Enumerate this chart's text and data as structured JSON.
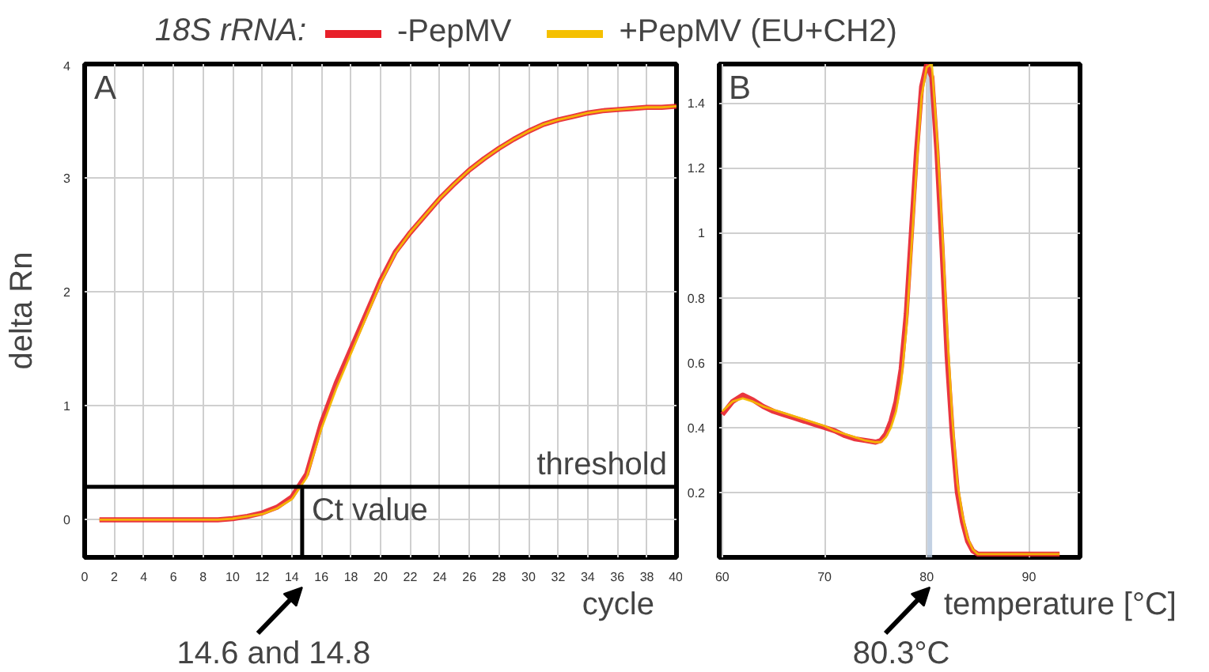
{
  "chart_data": [
    {
      "type": "line",
      "title": "A",
      "xlabel": "cycle",
      "ylabel": "delta Rn",
      "legend_title": "18S rRNA:",
      "legend": "top",
      "x": [
        1,
        2,
        3,
        4,
        5,
        6,
        7,
        8,
        9,
        10,
        11,
        12,
        13,
        14,
        15,
        16,
        17,
        18,
        19,
        20,
        21,
        22,
        23,
        24,
        25,
        26,
        27,
        28,
        29,
        30,
        31,
        32,
        33,
        34,
        35,
        36,
        37,
        38,
        39,
        40
      ],
      "series": [
        {
          "name": "-PepMV",
          "color": "#e8202a",
          "values": [
            0,
            0,
            0,
            0,
            0,
            0,
            0,
            0,
            0,
            0.01,
            0.03,
            0.06,
            0.11,
            0.2,
            0.4,
            0.85,
            1.2,
            1.5,
            1.8,
            2.1,
            2.35,
            2.52,
            2.67,
            2.82,
            2.95,
            3.07,
            3.17,
            3.26,
            3.34,
            3.41,
            3.47,
            3.51,
            3.54,
            3.57,
            3.59,
            3.6,
            3.61,
            3.62,
            3.62,
            3.63
          ]
        },
        {
          "name": "+PepMV (EU+CH2)",
          "color": "#f5c000",
          "values": [
            0,
            0,
            0,
            0,
            0,
            0,
            0,
            0,
            0,
            0.01,
            0.03,
            0.05,
            0.1,
            0.18,
            0.37,
            0.8,
            1.15,
            1.46,
            1.77,
            2.08,
            2.34,
            2.52,
            2.67,
            2.82,
            2.95,
            3.07,
            3.17,
            3.26,
            3.34,
            3.41,
            3.47,
            3.51,
            3.54,
            3.57,
            3.59,
            3.6,
            3.61,
            3.62,
            3.62,
            3.63
          ]
        }
      ],
      "xlim": [
        0,
        40
      ],
      "xticks": [
        0,
        2,
        4,
        6,
        8,
        10,
        12,
        14,
        16,
        18,
        20,
        22,
        24,
        26,
        28,
        30,
        32,
        34,
        36,
        38,
        40
      ],
      "ylim": [
        -0.33,
        4
      ],
      "yticks": [
        0,
        1,
        2,
        3,
        4
      ],
      "grid": true,
      "ref_lines": [
        {
          "axis": "y",
          "value": 0.29,
          "label": "threshold",
          "color": "#000000"
        },
        {
          "axis": "x",
          "value": 14.7,
          "label": "Ct value",
          "color": "#000000"
        }
      ],
      "annotations": [
        {
          "text": "14.6 and 14.8",
          "x": 14.7,
          "y": -0.33
        }
      ]
    },
    {
      "type": "line",
      "title": "B",
      "xlabel": "temperature [°C]",
      "x": [
        60,
        61,
        62,
        63,
        64,
        65,
        66,
        67,
        68,
        69,
        70,
        71,
        72,
        73,
        74,
        75,
        75.5,
        76,
        76.5,
        77,
        77.5,
        78,
        78.5,
        79,
        79.5,
        80,
        80.5,
        81,
        81.5,
        82,
        82.5,
        83,
        83.5,
        84,
        84.5,
        85,
        86,
        87,
        88,
        89,
        90,
        91,
        92,
        93
      ],
      "series": [
        {
          "color": "#e8202a",
          "values": [
            0.44,
            0.48,
            0.5,
            0.485,
            0.465,
            0.45,
            0.44,
            0.43,
            0.42,
            0.41,
            0.4,
            0.39,
            0.375,
            0.365,
            0.36,
            0.355,
            0.36,
            0.38,
            0.42,
            0.48,
            0.58,
            0.75,
            1.0,
            1.25,
            1.45,
            1.52,
            1.48,
            1.25,
            0.95,
            0.62,
            0.38,
            0.2,
            0.11,
            0.05,
            0.02,
            0.01,
            0.01,
            0.01,
            0.01,
            0.01,
            0.01,
            0.01,
            0.01,
            0.01
          ]
        },
        {
          "color": "#f5c000",
          "values": [
            0.45,
            0.48,
            0.49,
            0.48,
            0.465,
            0.455,
            0.445,
            0.435,
            0.425,
            0.415,
            0.405,
            0.39,
            0.38,
            0.37,
            0.36,
            0.355,
            0.355,
            0.37,
            0.4,
            0.45,
            0.54,
            0.7,
            0.95,
            1.2,
            1.42,
            1.51,
            1.52,
            1.3,
            1.02,
            0.7,
            0.43,
            0.23,
            0.13,
            0.06,
            0.025,
            0.01,
            0.01,
            0.01,
            0.01,
            0.01,
            0.01,
            0.01,
            0.01,
            0.01
          ]
        }
      ],
      "xlim": [
        59.7,
        95
      ],
      "xticks": [
        60,
        70,
        80,
        90
      ],
      "ylim": [
        0,
        1.52
      ],
      "yticks": [
        0.2,
        0.4,
        0.6,
        0.8,
        1,
        1.2,
        1.4
      ],
      "grid": true,
      "ref_lines": [
        {
          "axis": "x",
          "value": 80.3,
          "color": "#b4c6dc"
        }
      ],
      "annotations": [
        {
          "text": "80.3°C",
          "x": 80.3,
          "y": 0
        }
      ]
    }
  ]
}
